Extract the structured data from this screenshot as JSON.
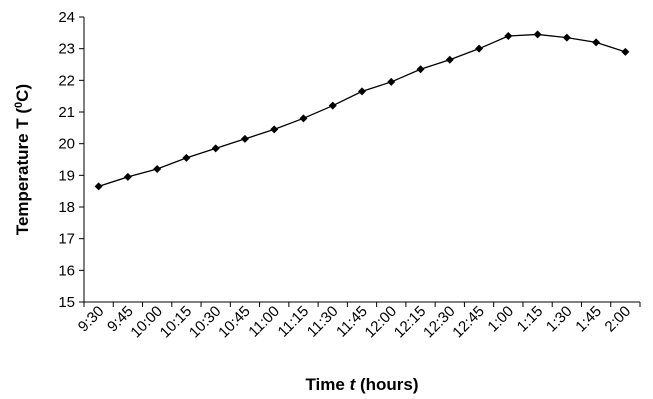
{
  "chart_data": {
    "type": "line",
    "title": "",
    "xlabel": "Time t (hours)",
    "xlabel_parts": {
      "pre": "Time ",
      "var": "t",
      "post": " (hours)"
    },
    "ylabel": "Temperature T (0C)",
    "ylabel_parts": {
      "pre": "Temperature T (",
      "sup": "0",
      "post": "C)"
    },
    "ylim": [
      15,
      24
    ],
    "yticks": [
      "15",
      "16",
      "17",
      "18",
      "19",
      "20",
      "21",
      "22",
      "23",
      "24"
    ],
    "categories": [
      "9:30",
      "9:45",
      "10:00",
      "10:15",
      "10:30",
      "10:45",
      "11:00",
      "11:15",
      "11:30",
      "11:45",
      "12:00",
      "12:15",
      "12:30",
      "12:45",
      "1:00",
      "1:15",
      "1:30",
      "1:45",
      "2:00"
    ],
    "series": [
      {
        "values": [
          18.65,
          18.95,
          19.2,
          19.55,
          19.85,
          20.15,
          20.45,
          20.8,
          21.2,
          21.65,
          21.95,
          22.35,
          22.65,
          23.0,
          23.4,
          23.45,
          23.35,
          23.2,
          22.9
        ],
        "color": "#000000",
        "marker": "diamond"
      }
    ],
    "grid": false,
    "legend": "none"
  }
}
